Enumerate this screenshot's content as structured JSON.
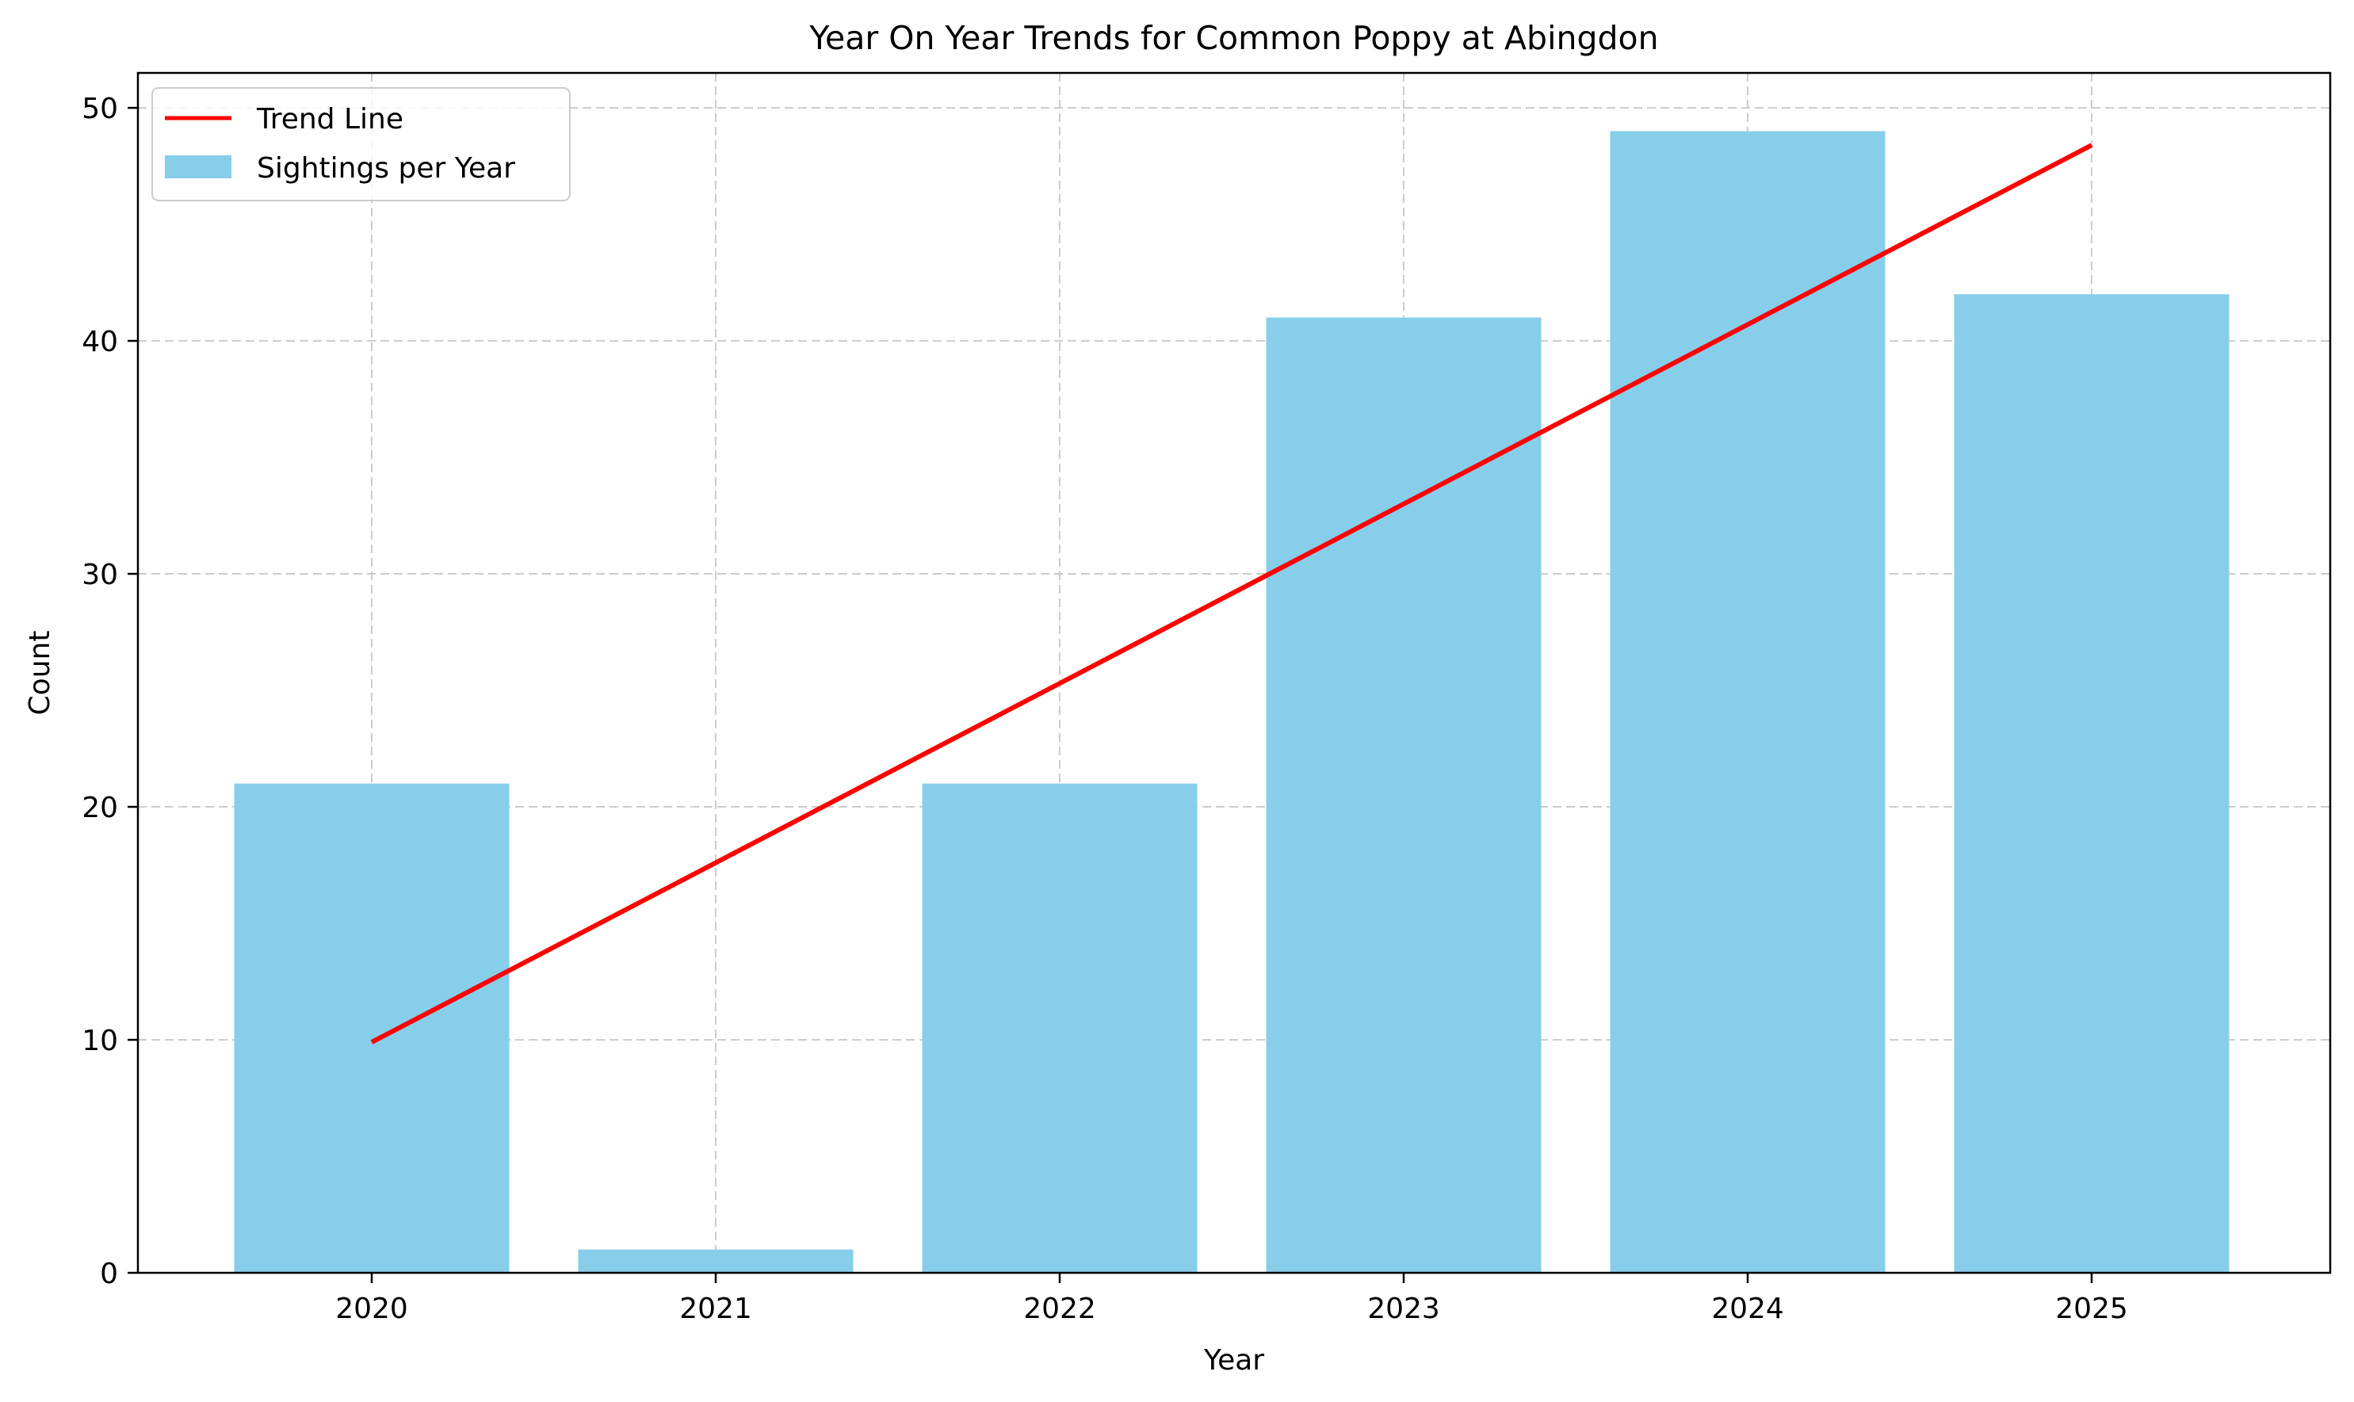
{
  "chart_data": {
    "type": "bar",
    "title": "Year On Year Trends for Common Poppy at Abingdon",
    "xlabel": "Year",
    "ylabel": "Count",
    "categories": [
      "2020",
      "2021",
      "2022",
      "2023",
      "2024",
      "2025"
    ],
    "series": [
      {
        "name": "Sightings per Year",
        "type": "bar",
        "values": [
          21,
          1,
          21,
          41,
          49,
          42
        ],
        "color": "#87CEEB"
      },
      {
        "name": "Trend Line",
        "type": "line",
        "values": [
          9.9,
          17.6,
          25.3,
          33.0,
          40.7,
          48.4
        ],
        "color": "#FF0000"
      }
    ],
    "ylim": [
      0,
      51.5
    ],
    "yticks": [
      0,
      10,
      20,
      30,
      40,
      50
    ],
    "grid": true,
    "legend_position": "upper-left"
  }
}
